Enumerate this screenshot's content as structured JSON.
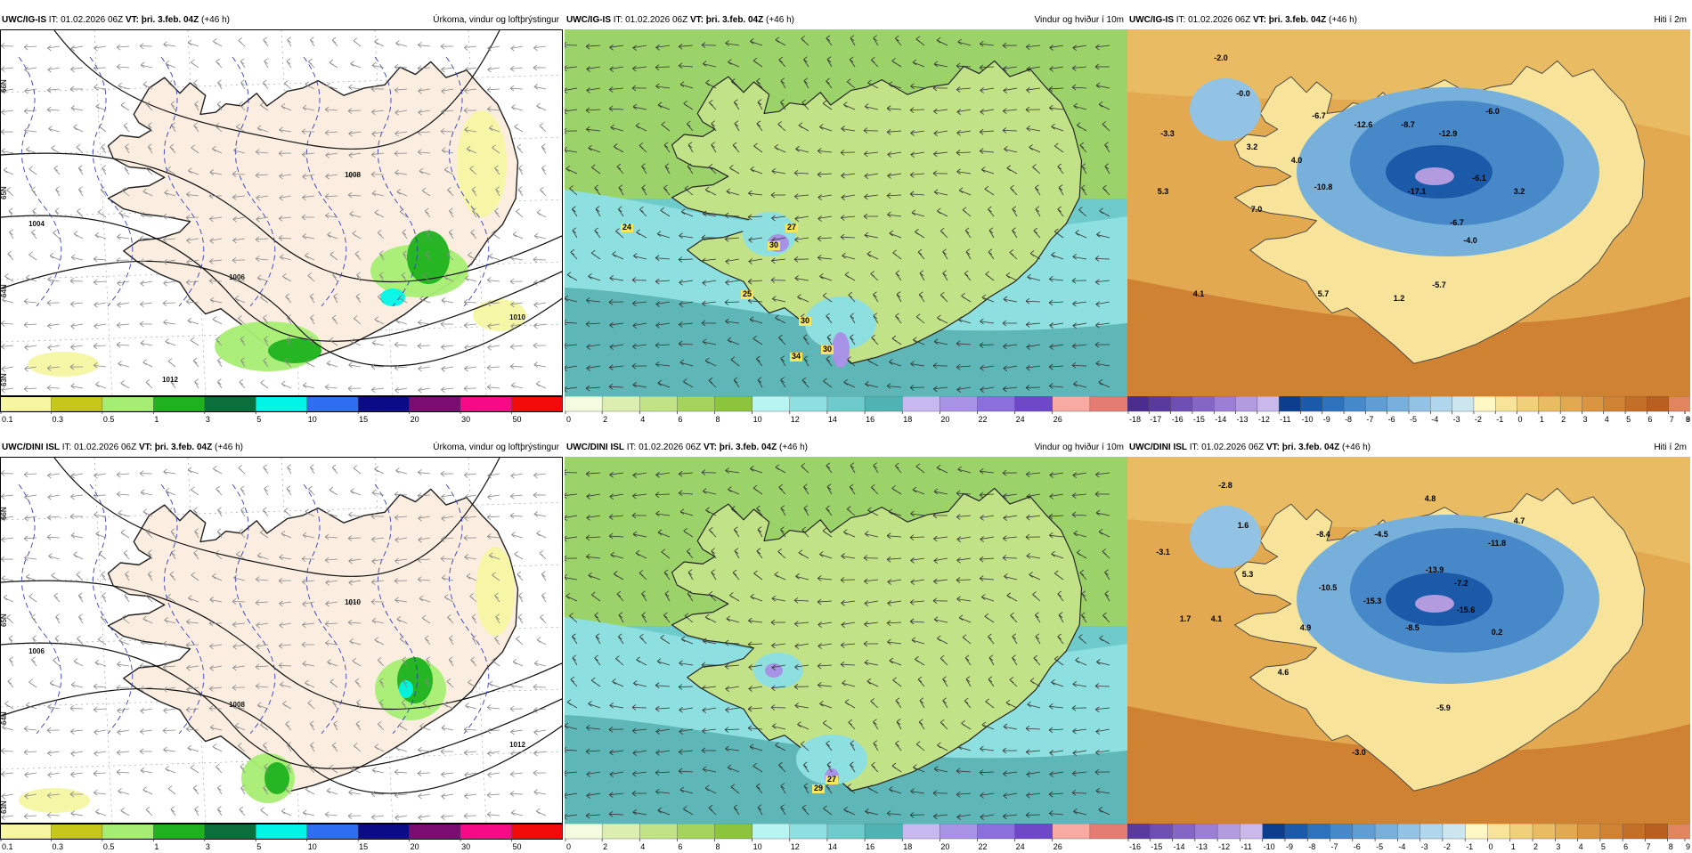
{
  "colorbars": {
    "precip": {
      "colors": [
        "#f6f5a2",
        "#c5c81a",
        "#a6ee73",
        "#1fb11f",
        "#0a6f3a",
        "#00f5e6",
        "#2f6ef0",
        "#0b0b86",
        "#7a0e70",
        "#f70a86",
        "#f20b0b"
      ],
      "ticks": [
        "0.1",
        "0.3",
        "0.5",
        "1",
        "3",
        "5",
        "10",
        "15",
        "20",
        "30",
        "50"
      ]
    },
    "wind": {
      "colors": [
        "#f5fbe1",
        "#dcefb0",
        "#c2e287",
        "#a5d35d",
        "#8cc43e",
        "#b7f4f2",
        "#8ee0e0",
        "#6fcbcb",
        "#4fb3b3",
        "#c7b8ef",
        "#a892e6",
        "#8b6fdb",
        "#6f48c8",
        "#f7aaa2",
        "#e57c74"
      ],
      "ticks": [
        "0",
        "2",
        "4",
        "6",
        "8",
        "10",
        "12",
        "14",
        "16",
        "18",
        "20",
        "22",
        "24",
        "26"
      ]
    },
    "temp_top": {
      "colors": [
        "#4a2d8c",
        "#5a3b9d",
        "#6e4fb2",
        "#8466c4",
        "#9b7fd4",
        "#b29bdf",
        "#c9b8ea",
        "#0b3e8c",
        "#1a5aa8",
        "#2e72bb",
        "#4688c8",
        "#5f9dd3",
        "#78b0dc",
        "#93c3e4",
        "#afd6ec",
        "#cce6f0",
        "#fff7c4",
        "#f7e49a",
        "#f0d07b",
        "#e9bc63",
        "#e2a950",
        "#da9540",
        "#d08233",
        "#c46f28",
        "#b85f1f",
        "#e0855e"
      ],
      "ticks": [
        "-18",
        "-17",
        "-16",
        "-15",
        "-14",
        "-13",
        "-12",
        "-11",
        "-10",
        "-9",
        "-8",
        "-7",
        "-6",
        "-5",
        "-4",
        "-3",
        "-2",
        "-1",
        "0",
        "1",
        "2",
        "3",
        "4",
        "5",
        "6",
        "7",
        "8",
        "9"
      ]
    },
    "temp_bottom": {
      "colors": [
        "#5a3b9d",
        "#6e4fb2",
        "#8466c4",
        "#9b7fd4",
        "#b29bdf",
        "#c9b8ea",
        "#0b3e8c",
        "#1a5aa8",
        "#2e72bb",
        "#4688c8",
        "#5f9dd3",
        "#78b0dc",
        "#93c3e4",
        "#afd6ec",
        "#cce6f0",
        "#fff7c4",
        "#f7e49a",
        "#f0d07b",
        "#e9bc63",
        "#e2a950",
        "#da9540",
        "#d08233",
        "#c46f28",
        "#b85f1f",
        "#e0855e"
      ],
      "ticks": [
        "-16",
        "-15",
        "-14",
        "-13",
        "-12",
        "-11",
        "-10",
        "-9",
        "-8",
        "-7",
        "-6",
        "-5",
        "-4",
        "-3",
        "-2",
        "-1",
        "0",
        "1",
        "2",
        "3",
        "4",
        "5",
        "6",
        "7",
        "8",
        "9"
      ]
    }
  },
  "panels": [
    {
      "model": "UWC/IG-IS",
      "it_label": "IT:",
      "it_value": "01.02.2026 06Z",
      "vt_label": "VT:",
      "vt_value": "þri. 3.feb. 04Z",
      "lead": "(+46 h)",
      "title": "Úrkoma, vindur og loftþrýstingur",
      "kind": "precip",
      "isobars": [
        "1004",
        "1006",
        "1008",
        "1010",
        "1012"
      ],
      "lat_labels": [
        "66N",
        "65N",
        "64N",
        "63N"
      ],
      "values": []
    },
    {
      "model": "UWC/IG-IS",
      "it_label": "IT:",
      "it_value": "01.02.2026 06Z",
      "vt_label": "VT:",
      "vt_value": "þri. 3.feb. 04Z",
      "lead": "(+46 h)",
      "title": "Vindur og hviður í 10m",
      "kind": "wind",
      "values": [
        "24",
        "27",
        "30",
        "25",
        "30",
        "34",
        "30"
      ]
    },
    {
      "model": "UWC/IG-IS",
      "it_label": "IT:",
      "it_value": "01.02.2026 06Z",
      "vt_label": "VT:",
      "vt_value": "þri. 3.feb. 04Z",
      "lead": "(+46 h)",
      "title": "Hiti í 2m",
      "kind": "temp",
      "values": [
        "-2.0",
        "-0.0",
        "-3.3",
        "3.2",
        "5.3",
        "7.0",
        "-6.7",
        "4.0",
        "-12.6",
        "-8.7",
        "-12.9",
        "-6.0",
        "-10.8",
        "-17.1",
        "-6.7",
        "-6.1",
        "3.2",
        "-4.0",
        "4.1",
        "5.7",
        "1.2",
        "-5.7"
      ]
    },
    {
      "model": "UWC/DINI ISL",
      "it_label": "IT:",
      "it_value": "01.02.2026 06Z",
      "vt_label": "VT:",
      "vt_value": "þri. 3.feb. 04Z",
      "lead": "(+46 h)",
      "title": "Úrkoma, vindur og loftþrýstingur",
      "kind": "precip",
      "isobars": [
        "1006",
        "1008",
        "1010",
        "1012"
      ],
      "lat_labels": [
        "66N",
        "65N",
        "64N",
        "63N"
      ],
      "values": []
    },
    {
      "model": "UWC/DINI ISL",
      "it_label": "IT:",
      "it_value": "01.02.2026 06Z",
      "vt_label": "VT:",
      "vt_value": "þri. 3.feb. 04Z",
      "lead": "(+46 h)",
      "title": "Vindur og hviður í 10m",
      "kind": "wind",
      "values": [
        "29",
        "27"
      ]
    },
    {
      "model": "UWC/DINI ISL",
      "it_label": "IT:",
      "it_value": "01.02.2026 06Z",
      "vt_label": "VT:",
      "vt_value": "þri. 3.feb. 04Z",
      "lead": "(+46 h)",
      "title": "Hiti í 2m",
      "kind": "temp",
      "values": [
        "-2.8",
        "1.6",
        "-3.1",
        "5.3",
        "4.8",
        "4.7",
        "-8.4",
        "-4.5",
        "-11.8",
        "-10.5",
        "-13.9",
        "-7.2",
        "-15.3",
        "-15.6",
        "-8.5",
        "0.2",
        "1.7",
        "4.1",
        "4.9",
        "4.6",
        "-5.9",
        "-3.0"
      ]
    }
  ]
}
